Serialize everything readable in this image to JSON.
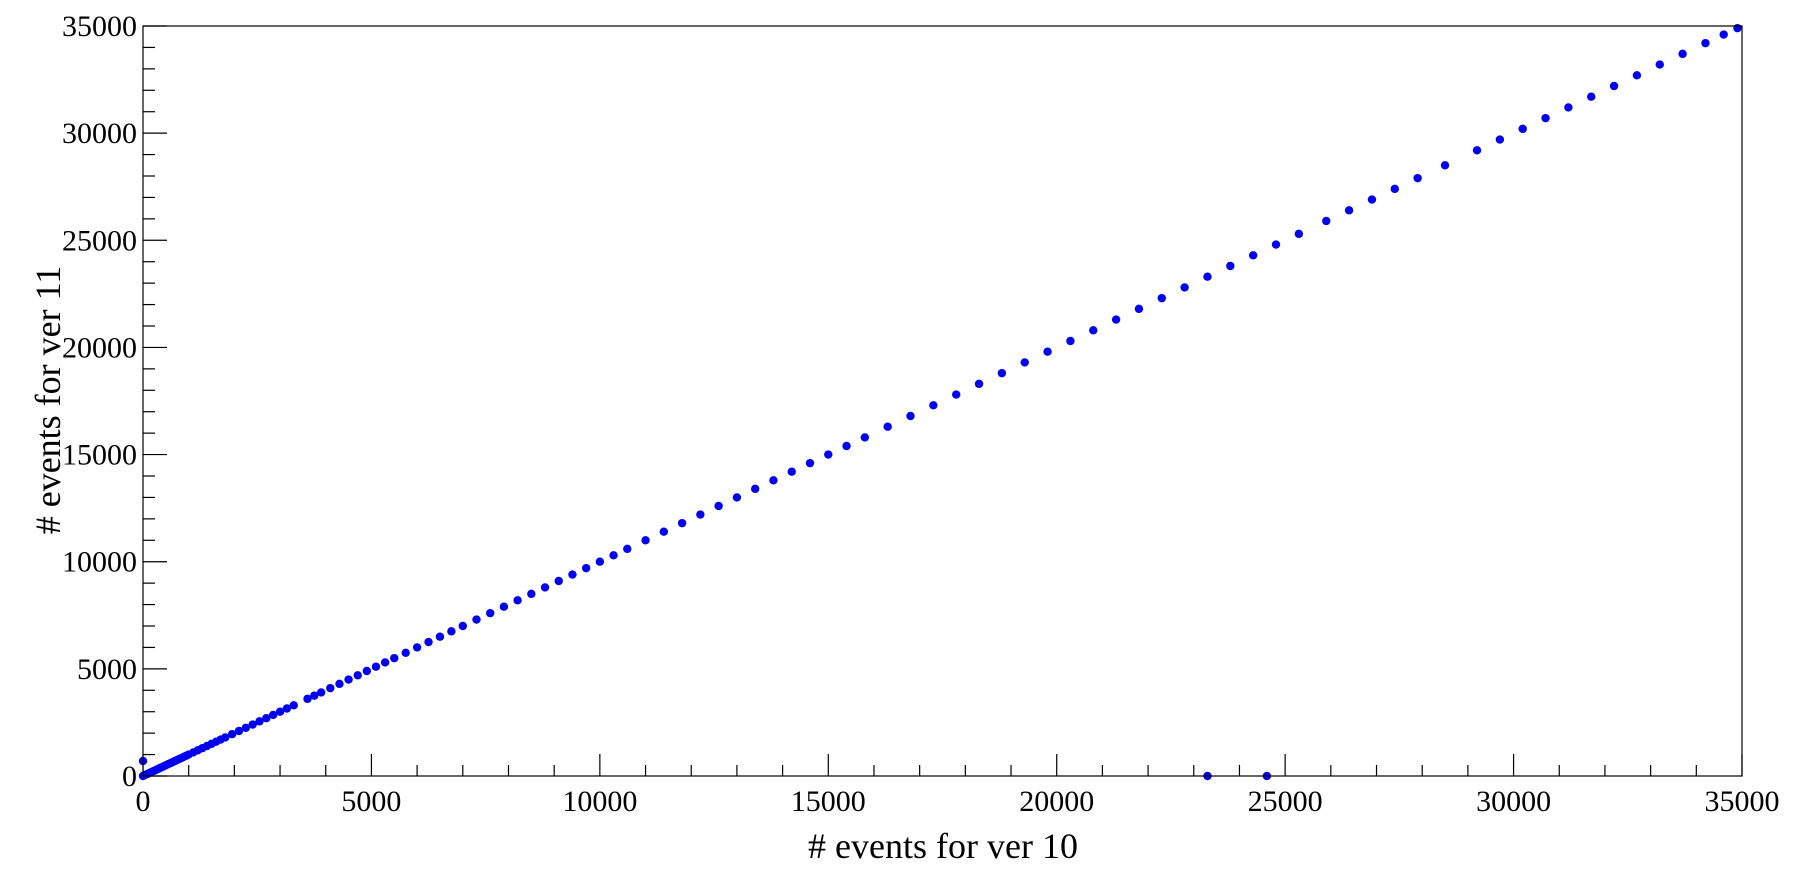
{
  "chart_data": {
    "type": "scatter",
    "xlabel": "# events for ver 10",
    "ylabel": "# events for ver 11",
    "xlim": [
      0,
      35000
    ],
    "ylim": [
      0,
      35000
    ],
    "x_ticks": [
      0,
      5000,
      10000,
      15000,
      20000,
      25000,
      30000,
      35000
    ],
    "y_ticks": [
      0,
      5000,
      10000,
      15000,
      20000,
      25000,
      30000,
      35000
    ],
    "grid": false,
    "point_color": "#0000ee",
    "series": [
      {
        "x": [
          0,
          50,
          100,
          150,
          200,
          250,
          300,
          350,
          400,
          450,
          500,
          550,
          600,
          650,
          700,
          750,
          800,
          850,
          900,
          950,
          1000,
          1100,
          1200,
          1300,
          1400,
          1500,
          1600,
          1700,
          1800,
          1950,
          2100,
          2250,
          2400,
          2550,
          2700,
          2850,
          3000,
          3150,
          3300,
          3600,
          3750,
          3900,
          4100,
          4300,
          4500,
          4700,
          4900,
          5100,
          5300,
          5500,
          5750,
          6000,
          6250,
          6500,
          6750,
          7000,
          7300,
          7600,
          7900,
          8200,
          8500,
          8800,
          9100,
          9400,
          9700,
          10000,
          10300,
          10600,
          11000,
          11400,
          11800,
          12200,
          12600,
          13000,
          13400,
          13800,
          14200,
          14600,
          15000,
          15400,
          15800,
          16300,
          16800,
          17300,
          17800,
          18300,
          18800,
          19300,
          19800,
          20300,
          20800,
          21300,
          21800,
          22300,
          22800,
          23300,
          23800,
          24300,
          24800,
          25300,
          25900,
          26400,
          26900,
          27400,
          27900,
          28500,
          29200,
          29700,
          30200,
          30700,
          31200,
          31700,
          32200,
          32700,
          33200,
          33700,
          34200,
          34600,
          34900,
          0,
          23300,
          24600
        ],
        "y": [
          0,
          50,
          100,
          150,
          200,
          250,
          300,
          350,
          400,
          450,
          500,
          550,
          600,
          650,
          700,
          750,
          800,
          850,
          900,
          950,
          1000,
          1100,
          1200,
          1300,
          1400,
          1500,
          1600,
          1700,
          1800,
          1950,
          2100,
          2250,
          2400,
          2550,
          2700,
          2850,
          3000,
          3150,
          3300,
          3600,
          3750,
          3900,
          4100,
          4300,
          4500,
          4700,
          4900,
          5100,
          5300,
          5500,
          5750,
          6000,
          6250,
          6500,
          6750,
          7000,
          7300,
          7600,
          7900,
          8200,
          8500,
          8800,
          9100,
          9400,
          9700,
          10000,
          10300,
          10600,
          11000,
          11400,
          11800,
          12200,
          12600,
          13000,
          13400,
          13800,
          14200,
          14600,
          15000,
          15400,
          15800,
          16300,
          16800,
          17300,
          17800,
          18300,
          18800,
          19300,
          19800,
          20300,
          20800,
          21300,
          21800,
          22300,
          22800,
          23300,
          23800,
          24300,
          24800,
          25300,
          25900,
          26400,
          26900,
          27400,
          27900,
          28500,
          29200,
          29700,
          30200,
          30700,
          31200,
          31700,
          32200,
          32700,
          33200,
          33700,
          34200,
          34600,
          34900,
          700,
          0,
          0
        ]
      }
    ]
  }
}
